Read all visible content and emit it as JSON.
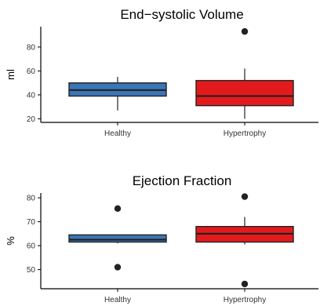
{
  "colors": {
    "healthy": "#3a76b8",
    "hypertrophy": "#e31a1c",
    "outline": "#222222",
    "axis": "#000000"
  },
  "chart_data": [
    {
      "type": "box",
      "title": "End−systolic Volume",
      "ylabel": "ml",
      "ylim": [
        17,
        97
      ],
      "yticks": [
        20,
        40,
        60,
        80
      ],
      "categories": [
        "Healthy",
        "Hypertrophy"
      ],
      "boxes": [
        {
          "category": "Healthy",
          "whisker_low": 27,
          "q1": 39,
          "median": 44,
          "q3": 50,
          "whisker_high": 55,
          "outliers": []
        },
        {
          "category": "Hypertrophy",
          "whisker_low": 20,
          "q1": 31,
          "median": 39,
          "q3": 52,
          "whisker_high": 62,
          "outliers": [
            93
          ]
        }
      ]
    },
    {
      "type": "box",
      "title": "Ejection Fraction",
      "ylabel": "%",
      "ylim": [
        42,
        82
      ],
      "yticks": [
        50,
        60,
        70,
        80
      ],
      "categories": [
        "Healthy",
        "Hypertrophy"
      ],
      "boxes": [
        {
          "category": "Healthy",
          "whisker_low": 61,
          "q1": 61.5,
          "median": 62.5,
          "q3": 64.5,
          "whisker_high": 64.5,
          "outliers": [
            75.5,
            51
          ]
        },
        {
          "category": "Hypertrophy",
          "whisker_low": 60.5,
          "q1": 61.5,
          "median": 65,
          "q3": 68,
          "whisker_high": 72,
          "outliers": [
            80.5,
            44
          ]
        }
      ]
    }
  ]
}
